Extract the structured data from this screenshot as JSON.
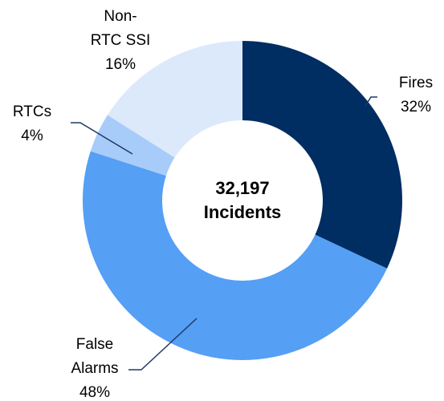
{
  "chart_data": {
    "type": "donut",
    "center_text": "32,197\nIncidents",
    "categories": [
      "Fires",
      "False\nAlarms",
      "RTCs",
      "Non-\nRTC SSI"
    ],
    "values": [
      32,
      48,
      4,
      16
    ],
    "value_labels": [
      "32%",
      "48%",
      "4%",
      "16%"
    ],
    "colors": [
      "#002d62",
      "#559ff5",
      "#a8ccfa",
      "#dce9fb"
    ]
  }
}
